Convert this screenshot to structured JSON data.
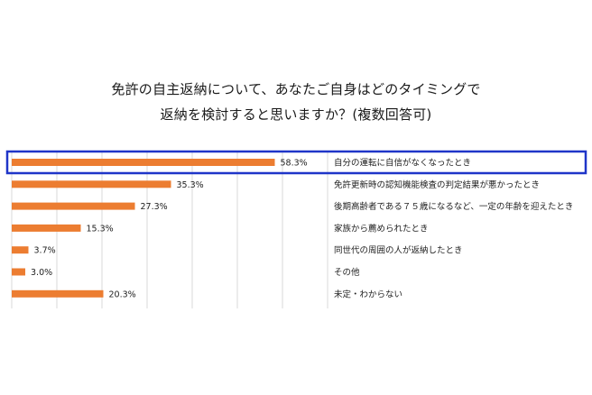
{
  "chart_data": {
    "type": "bar",
    "orientation": "horizontal",
    "title_lines": [
      "免許の自主返納について、あなたご自身はどのタイミングで",
      "返納を検討すると思いますか？(複数回答可)"
    ],
    "categories": [
      "自分の運転に自信がなくなったとき",
      "免許更新時の認知機能検査の判定結果が悪かったとき",
      "後期高齢者である７５歳になるなど、一定の年齢を迎えたとき",
      "家族から薦められたとき",
      "同世代の周囲の人が返納したとき",
      "その他",
      "未定・わからない"
    ],
    "values": [
      58.3,
      35.3,
      27.3,
      15.3,
      3.7,
      3.0,
      20.3
    ],
    "value_labels": [
      "58.3%",
      "35.3%",
      "27.3%",
      "15.3%",
      "3.7%",
      "3.0%",
      "20.3%"
    ],
    "xlim": [
      0,
      70
    ],
    "grid": true,
    "highlighted_category_index": 0,
    "colors": {
      "bar": "#ec7d31",
      "highlight_box": "#1f35c8",
      "grid": "#d9d9d9"
    }
  }
}
